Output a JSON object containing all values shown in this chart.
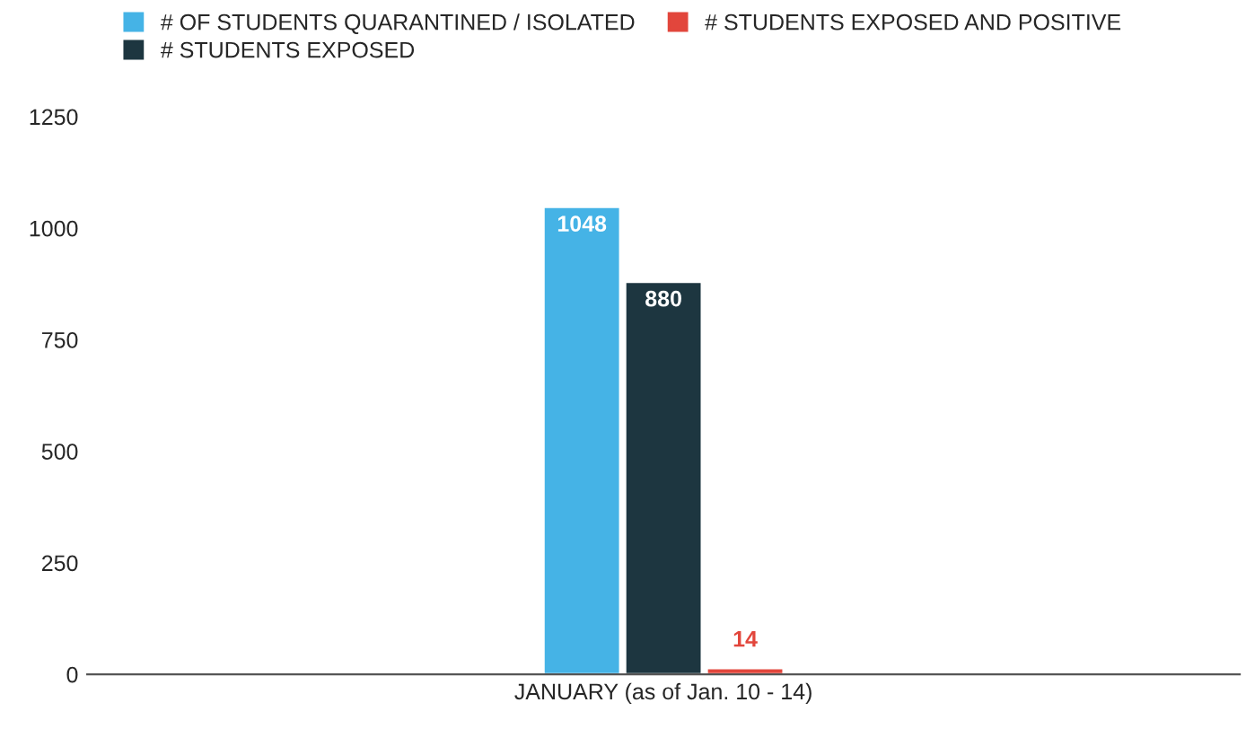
{
  "chart_data": {
    "type": "bar",
    "categories": [
      "JANUARY (as of Jan. 10 - 14)"
    ],
    "series": [
      {
        "name": "# OF STUDENTS QUARANTINED / ISOLATED",
        "color": "#45b3e6",
        "values": [
          1048
        ]
      },
      {
        "name": "# STUDENTS EXPOSED",
        "color": "#1d3640",
        "values": [
          880
        ]
      },
      {
        "name": "# STUDENTS EXPOSED AND POSITIVE",
        "color": "#e2463c",
        "values": [
          14
        ]
      }
    ],
    "ylim": [
      0,
      1250
    ],
    "yticks": [
      0,
      250,
      500,
      750,
      1000,
      1250
    ],
    "grid": false,
    "legend": "top",
    "data_labels": true
  }
}
